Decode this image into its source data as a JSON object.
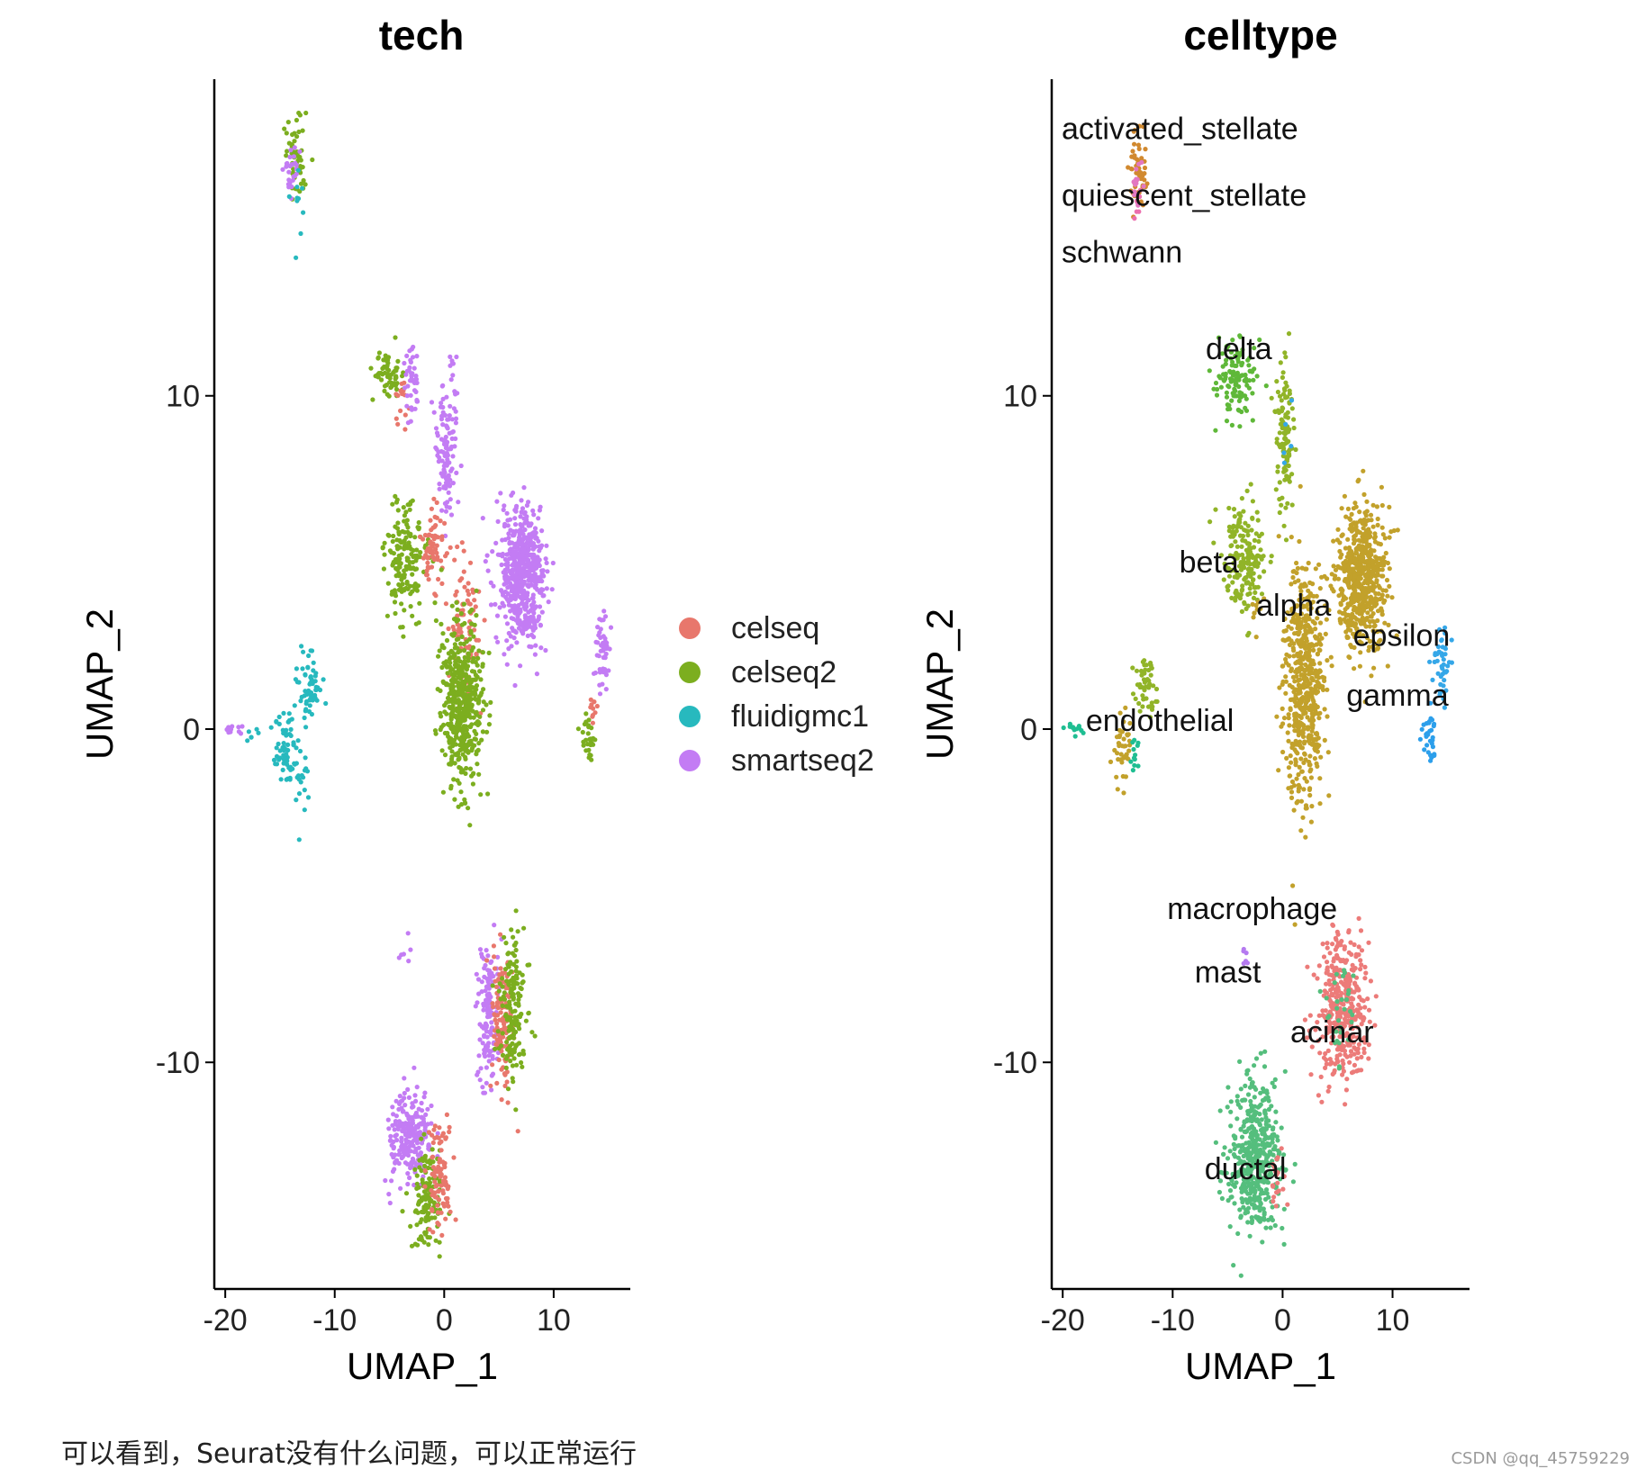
{
  "chart_data": [
    {
      "type": "scatter",
      "title": "tech",
      "xlabel": "UMAP_1",
      "ylabel": "UMAP_2",
      "xlim": [
        -21,
        17
      ],
      "ylim": [
        -16.8,
        19.5
      ],
      "xticks": [
        -20,
        -10,
        0,
        10
      ],
      "xtick_labels": [
        "-20",
        "-10",
        "0",
        "10"
      ],
      "yticks": [
        -10,
        0,
        10
      ],
      "ytick_labels": [
        "-10",
        "0",
        "10"
      ],
      "legend_position": "right",
      "legend": [
        {
          "name": "celseq",
          "color": "#E8776C"
        },
        {
          "name": "celseq2",
          "color": "#7CAE1F"
        },
        {
          "name": "fluidigmc1",
          "color": "#27B9BE"
        },
        {
          "name": "smartseq2",
          "color": "#C37CF4"
        }
      ],
      "clusters": [
        {
          "group": "celseq2",
          "cx": -13.5,
          "cy": 17.2,
          "sx": 0.5,
          "sy": 0.6,
          "n": 55
        },
        {
          "group": "smartseq2",
          "cx": -14,
          "cy": 16.9,
          "sx": 0.4,
          "sy": 0.4,
          "n": 25
        },
        {
          "group": "fluidigmc1",
          "cx": -13.4,
          "cy": 15.5,
          "sx": 0.25,
          "sy": 0.6,
          "n": 10
        },
        {
          "group": "celseq2",
          "cx": -5,
          "cy": 10.6,
          "sx": 0.7,
          "sy": 0.35,
          "n": 60
        },
        {
          "group": "celseq",
          "cx": -3.9,
          "cy": 9.7,
          "sx": 0.3,
          "sy": 0.5,
          "n": 15
        },
        {
          "group": "smartseq2",
          "cx": -3.1,
          "cy": 10.4,
          "sx": 0.35,
          "sy": 0.6,
          "n": 40
        },
        {
          "group": "smartseq2",
          "cx": 0.2,
          "cy": 8.6,
          "sx": 0.5,
          "sy": 1.3,
          "n": 120
        },
        {
          "group": "celseq2",
          "cx": -3.5,
          "cy": 5.0,
          "sx": 0.9,
          "sy": 0.8,
          "n": 170
        },
        {
          "group": "celseq",
          "cx": -1.1,
          "cy": 5.5,
          "sx": 0.5,
          "sy": 0.6,
          "n": 70
        },
        {
          "group": "celseq",
          "cx": 2.0,
          "cy": 3.0,
          "sx": 0.8,
          "sy": 1.2,
          "n": 90
        },
        {
          "group": "celseq2",
          "cx": 1.6,
          "cy": 0.8,
          "sx": 0.9,
          "sy": 1.2,
          "n": 520
        },
        {
          "group": "smartseq2",
          "cx": 7.0,
          "cy": 4.6,
          "sx": 1.1,
          "sy": 1.0,
          "n": 560
        },
        {
          "group": "smartseq2",
          "cx": 14.5,
          "cy": 2.1,
          "sx": 0.35,
          "sy": 0.6,
          "n": 55
        },
        {
          "group": "celseq2",
          "cx": 13.2,
          "cy": -0.3,
          "sx": 0.3,
          "sy": 0.35,
          "n": 30
        },
        {
          "group": "celseq",
          "cx": 13.6,
          "cy": 0.6,
          "sx": 0.2,
          "sy": 0.3,
          "n": 10
        },
        {
          "group": "fluidigmc1",
          "cx": -12.4,
          "cy": 1.2,
          "sx": 0.5,
          "sy": 0.5,
          "n": 60
        },
        {
          "group": "fluidigmc1",
          "cx": -14.4,
          "cy": -0.6,
          "sx": 0.6,
          "sy": 0.6,
          "n": 70
        },
        {
          "group": "fluidigmc1",
          "cx": -13.0,
          "cy": -1.6,
          "sx": 0.3,
          "sy": 0.5,
          "n": 15
        },
        {
          "group": "smartseq2",
          "cx": -19.3,
          "cy": 0.0,
          "sx": 0.35,
          "sy": 0.1,
          "n": 10
        },
        {
          "group": "fluidigmc1",
          "cx": -17.6,
          "cy": -0.2,
          "sx": 0.3,
          "sy": 0.1,
          "n": 6
        },
        {
          "group": "smartseq2",
          "cx": -3.7,
          "cy": -6.7,
          "sx": 0.3,
          "sy": 0.3,
          "n": 6
        },
        {
          "group": "smartseq2",
          "cx": 4.0,
          "cy": -8.5,
          "sx": 0.5,
          "sy": 1.1,
          "n": 140
        },
        {
          "group": "celseq",
          "cx": 5.3,
          "cy": -8.6,
          "sx": 0.6,
          "sy": 0.9,
          "n": 130
        },
        {
          "group": "celseq2",
          "cx": 6.3,
          "cy": -8.4,
          "sx": 0.6,
          "sy": 1.1,
          "n": 160
        },
        {
          "group": "smartseq2",
          "cx": -3.2,
          "cy": -12.2,
          "sx": 1.0,
          "sy": 0.7,
          "n": 230
        },
        {
          "group": "celseq2",
          "cx": -1.6,
          "cy": -14.0,
          "sx": 0.7,
          "sy": 0.7,
          "n": 130
        },
        {
          "group": "celseq",
          "cx": -0.4,
          "cy": -13.4,
          "sx": 0.6,
          "sy": 0.9,
          "n": 90
        }
      ]
    },
    {
      "type": "scatter",
      "title": "celltype",
      "xlabel": "UMAP_1",
      "ylabel": "UMAP_2",
      "xlim": [
        -21,
        17
      ],
      "ylim": [
        -16.8,
        19.5
      ],
      "xticks": [
        -20,
        -10,
        0,
        10
      ],
      "xtick_labels": [
        "-20",
        "-10",
        "0",
        "10"
      ],
      "yticks": [
        -10,
        0,
        10
      ],
      "ytick_labels": [
        "-10",
        "0",
        "10"
      ],
      "legend_position": "none",
      "palette": {
        "activated_stellate": "#D1892F",
        "quiescent_stellate": "#E377C2",
        "schwann": "#EC6FAE",
        "delta": "#5FB839",
        "beta": "#91B428",
        "alpha": "#C2A12B",
        "epsilon": "#35A7E8",
        "gamma": "#2C9FEB",
        "endothelial": "#1FBE92",
        "macrophage": "#B57AF0",
        "mast": "#8E8AF4",
        "acinar": "#EC7B79",
        "ductal": "#55BE7D"
      },
      "cluster_labels": [
        {
          "text": "activated_stellate",
          "x": -20.1,
          "y": 17.7
        },
        {
          "text": "quiescent_stellate",
          "x": -20.1,
          "y": 15.7
        },
        {
          "text": "schwann",
          "x": -20.1,
          "y": 14.0
        },
        {
          "text": "delta",
          "x": -7.0,
          "y": 11.1
        },
        {
          "text": "beta",
          "x": -9.4,
          "y": 4.7
        },
        {
          "text": "alpha",
          "x": -2.4,
          "y": 3.4
        },
        {
          "text": "epsilon",
          "x": 6.4,
          "y": 2.5
        },
        {
          "text": "gamma",
          "x": 5.8,
          "y": 0.7
        },
        {
          "text": "endothelial",
          "x": -17.9,
          "y": -0.05
        },
        {
          "text": "macrophage",
          "x": -10.5,
          "y": -5.7
        },
        {
          "text": "mast",
          "x": -8.0,
          "y": -7.6
        },
        {
          "text": "acinar",
          "x": 0.7,
          "y": -9.4
        },
        {
          "text": "ductal",
          "x": -7.1,
          "y": -13.5
        }
      ],
      "clusters": [
        {
          "group": "activated_stellate",
          "cx": -13.2,
          "cy": 16.9,
          "sx": 0.35,
          "sy": 0.6,
          "n": 50
        },
        {
          "group": "quiescent_stellate",
          "cx": -13.3,
          "cy": 16.5,
          "sx": 0.2,
          "sy": 0.5,
          "n": 15
        },
        {
          "group": "schwann",
          "cx": -13.2,
          "cy": 15.4,
          "sx": 0.15,
          "sy": 0.4,
          "n": 6
        },
        {
          "group": "delta",
          "cx": -4.1,
          "cy": 10.5,
          "sx": 0.9,
          "sy": 0.6,
          "n": 120
        },
        {
          "group": "beta",
          "cx": 0.2,
          "cy": 8.7,
          "sx": 0.45,
          "sy": 1.2,
          "n": 110
        },
        {
          "group": "beta",
          "cx": -3.5,
          "cy": 5.1,
          "sx": 0.9,
          "sy": 0.9,
          "n": 180
        },
        {
          "group": "epsilon",
          "cx": 0.4,
          "cy": 8.9,
          "sx": 0.2,
          "sy": 0.5,
          "n": 5
        },
        {
          "group": "alpha",
          "cx": 2.0,
          "cy": 1.4,
          "sx": 0.9,
          "sy": 1.8,
          "n": 560
        },
        {
          "group": "alpha",
          "cx": 7.2,
          "cy": 4.5,
          "sx": 1.1,
          "sy": 1.1,
          "n": 600
        },
        {
          "group": "alpha",
          "cx": -2.2,
          "cy": 3.6,
          "sx": 0.3,
          "sy": 0.4,
          "n": 10
        },
        {
          "group": "epsilon",
          "cx": 14.5,
          "cy": 2.0,
          "sx": 0.35,
          "sy": 0.6,
          "n": 45
        },
        {
          "group": "gamma",
          "cx": 13.3,
          "cy": -0.2,
          "sx": 0.3,
          "sy": 0.4,
          "n": 30
        },
        {
          "group": "beta",
          "cx": -12.5,
          "cy": 1.2,
          "sx": 0.5,
          "sy": 0.5,
          "n": 50
        },
        {
          "group": "alpha",
          "cx": -14.5,
          "cy": -0.7,
          "sx": 0.5,
          "sy": 0.5,
          "n": 40
        },
        {
          "group": "endothelial",
          "cx": -18.8,
          "cy": 0.0,
          "sx": 0.4,
          "sy": 0.1,
          "n": 12
        },
        {
          "group": "endothelial",
          "cx": -13.4,
          "cy": -0.8,
          "sx": 0.25,
          "sy": 0.4,
          "n": 12
        },
        {
          "group": "macrophage",
          "cx": -3.7,
          "cy": -6.7,
          "sx": 0.3,
          "sy": 0.3,
          "n": 6
        },
        {
          "group": "acinar",
          "cx": 5.5,
          "cy": -8.4,
          "sx": 1.1,
          "sy": 1.1,
          "n": 380
        },
        {
          "group": "ductal",
          "cx": 5.2,
          "cy": -8.4,
          "sx": 0.6,
          "sy": 0.8,
          "n": 30
        },
        {
          "group": "ductal",
          "cx": -2.5,
          "cy": -12.8,
          "sx": 1.2,
          "sy": 1.1,
          "n": 460
        },
        {
          "group": "acinar",
          "cx": -0.5,
          "cy": -13.6,
          "sx": 0.4,
          "sy": 0.6,
          "n": 20
        }
      ]
    }
  ],
  "caption": "可以看到，Seurat没有什么问题，可以正常运行",
  "watermark": "CSDN @qq_45759229"
}
